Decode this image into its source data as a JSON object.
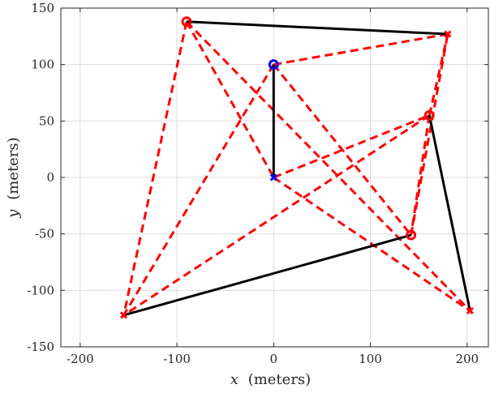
{
  "chart_data": {
    "type": "scatter",
    "title": "",
    "xlabel": "x (meters)",
    "ylabel": "y (meters)",
    "xlabel_var": "x",
    "xlabel_unit": "(meters)",
    "ylabel_var": "y",
    "ylabel_unit": "(meters)",
    "xlim": [
      -220,
      222
    ],
    "ylim": [
      -150,
      150
    ],
    "xticks": [
      -200,
      -100,
      0,
      100,
      200
    ],
    "yticks": [
      -150,
      -100,
      -50,
      0,
      50,
      100,
      150
    ],
    "grid": true,
    "colors": {
      "solid": "#000000",
      "dashed": "#ff0000",
      "red_marker": "#ff0000",
      "blue_marker": "#0000ff",
      "grid": "#dcdcdc",
      "axis": "#262626"
    },
    "points": {
      "circles_red": [
        {
          "x": -90,
          "y": 138
        },
        {
          "x": 161,
          "y": 55
        },
        {
          "x": 142,
          "y": -51
        }
      ],
      "circles_blue": [
        {
          "x": 0,
          "y": 100
        }
      ],
      "crosses_red": [
        {
          "x": 180,
          "y": 127
        },
        {
          "x": 203,
          "y": -118
        },
        {
          "x": -155,
          "y": -122
        }
      ],
      "crosses_blue": [
        {
          "x": 0,
          "y": 0
        }
      ]
    },
    "solid_segments": [
      {
        "from": [
          -90,
          138
        ],
        "to": [
          180,
          127
        ]
      },
      {
        "from": [
          0,
          100
        ],
        "to": [
          0,
          0
        ]
      },
      {
        "from": [
          161,
          55
        ],
        "to": [
          203,
          -118
        ]
      },
      {
        "from": [
          142,
          -51
        ],
        "to": [
          -155,
          -122
        ]
      }
    ],
    "dashed_segments": [
      {
        "from": [
          -90,
          138
        ],
        "to": [
          -155,
          -122
        ]
      },
      {
        "from": [
          -90,
          138
        ],
        "to": [
          0,
          0
        ]
      },
      {
        "from": [
          -90,
          138
        ],
        "to": [
          203,
          -118
        ]
      },
      {
        "from": [
          0,
          100
        ],
        "to": [
          180,
          127
        ]
      },
      {
        "from": [
          0,
          100
        ],
        "to": [
          -155,
          -122
        ]
      },
      {
        "from": [
          0,
          100
        ],
        "to": [
          142,
          -51
        ]
      },
      {
        "from": [
          0,
          0
        ],
        "to": [
          161,
          55
        ]
      },
      {
        "from": [
          0,
          0
        ],
        "to": [
          203,
          -118
        ]
      },
      {
        "from": [
          161,
          55
        ],
        "to": [
          -155,
          -122
        ]
      },
      {
        "from": [
          161,
          55
        ],
        "to": [
          180,
          127
        ]
      },
      {
        "from": [
          161,
          55
        ],
        "to": [
          142,
          -51
        ]
      },
      {
        "from": [
          142,
          -51
        ],
        "to": [
          180,
          127
        ]
      }
    ]
  }
}
